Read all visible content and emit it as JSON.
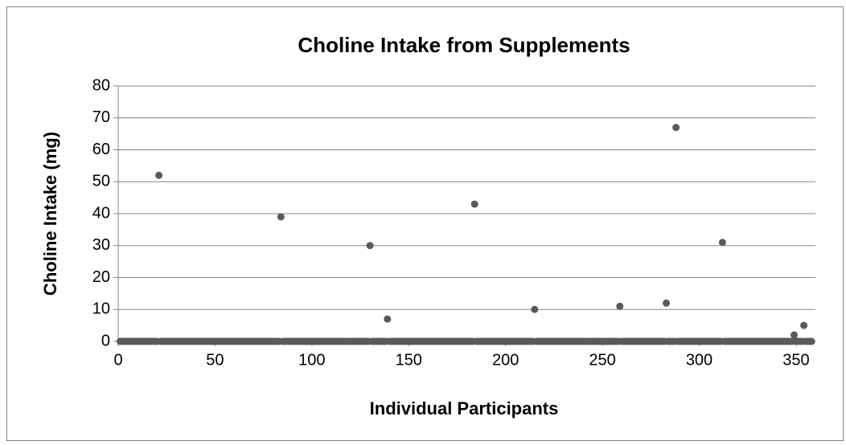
{
  "chart_data": {
    "type": "scatter",
    "title": "Choline Intake from Supplements",
    "x_label": "Individual Participants",
    "y_label": "Choline Intake (mg)",
    "xlim": [
      0,
      360
    ],
    "xticks": [
      0,
      50,
      100,
      150,
      200,
      250,
      300,
      350
    ],
    "ylim": [
      0,
      80
    ],
    "yticks": [
      0,
      10,
      20,
      30,
      40,
      50,
      60,
      70,
      80
    ],
    "grid": true,
    "series": [
      {
        "color": "#5a5a5a",
        "x": [
          1,
          2,
          3,
          4,
          5,
          6,
          7,
          8,
          9,
          10,
          11,
          12,
          13,
          14,
          15,
          16,
          17,
          18,
          19,
          20,
          21,
          22,
          23,
          24,
          25,
          26,
          27,
          28,
          29,
          30,
          31,
          32,
          33,
          34,
          35,
          36,
          37,
          38,
          39,
          40,
          41,
          42,
          43,
          44,
          45,
          46,
          47,
          48,
          49,
          50,
          51,
          52,
          53,
          54,
          55,
          56,
          57,
          58,
          59,
          60,
          61,
          62,
          63,
          64,
          65,
          66,
          67,
          68,
          69,
          70,
          71,
          72,
          73,
          74,
          75,
          76,
          77,
          78,
          79,
          80,
          81,
          82,
          83,
          84,
          85,
          86,
          87,
          88,
          89,
          90,
          91,
          92,
          93,
          94,
          95,
          96,
          97,
          98,
          99,
          100,
          101,
          102,
          103,
          104,
          105,
          106,
          107,
          108,
          109,
          110,
          111,
          112,
          113,
          114,
          115,
          116,
          117,
          118,
          119,
          120,
          121,
          122,
          123,
          124,
          125,
          126,
          127,
          128,
          129,
          130,
          131,
          132,
          133,
          134,
          135,
          136,
          137,
          138,
          139,
          140,
          141,
          142,
          143,
          144,
          145,
          146,
          147,
          148,
          149,
          150,
          151,
          152,
          153,
          154,
          155,
          156,
          157,
          158,
          159,
          160,
          161,
          162,
          163,
          164,
          165,
          166,
          167,
          168,
          169,
          170,
          171,
          172,
          173,
          174,
          175,
          176,
          177,
          178,
          179,
          180,
          181,
          182,
          183,
          184,
          185,
          186,
          187,
          188,
          189,
          190,
          191,
          192,
          193,
          194,
          195,
          196,
          197,
          198,
          199,
          200,
          201,
          202,
          203,
          204,
          205,
          206,
          207,
          208,
          209,
          210,
          211,
          212,
          213,
          214,
          215,
          216,
          217,
          218,
          219,
          220,
          221,
          222,
          223,
          224,
          225,
          226,
          227,
          228,
          229,
          230,
          231,
          232,
          233,
          234,
          235,
          236,
          237,
          238,
          239,
          240,
          241,
          242,
          243,
          244,
          245,
          246,
          247,
          248,
          249,
          250,
          251,
          252,
          253,
          254,
          255,
          256,
          257,
          258,
          259,
          260,
          261,
          262,
          263,
          264,
          265,
          266,
          267,
          268,
          269,
          270,
          271,
          272,
          273,
          274,
          275,
          276,
          277,
          278,
          279,
          280,
          281,
          282,
          283,
          284,
          285,
          286,
          287,
          288,
          289,
          290,
          291,
          292,
          293,
          294,
          295,
          296,
          297,
          298,
          299,
          300,
          301,
          302,
          303,
          304,
          305,
          306,
          307,
          308,
          309,
          310,
          311,
          312,
          313,
          314,
          315,
          316,
          317,
          318,
          319,
          320,
          321,
          322,
          323,
          324,
          325,
          326,
          327,
          328,
          329,
          330,
          331,
          332,
          333,
          334,
          335,
          336,
          337,
          338,
          339,
          340,
          341,
          342,
          343,
          344,
          345,
          346,
          347,
          348,
          349,
          350,
          351,
          352,
          353,
          354,
          355,
          356,
          357,
          358
        ],
        "values": [
          0,
          0,
          0,
          0,
          0,
          0,
          0,
          0,
          0,
          0,
          0,
          0,
          0,
          0,
          0,
          0,
          0,
          0,
          0,
          0,
          52,
          0,
          0,
          0,
          0,
          0,
          0,
          0,
          0,
          0,
          0,
          0,
          0,
          0,
          0,
          0,
          0,
          0,
          0,
          0,
          0,
          0,
          0,
          0,
          0,
          0,
          0,
          0,
          0,
          0,
          0,
          0,
          0,
          0,
          0,
          0,
          0,
          0,
          0,
          0,
          0,
          0,
          0,
          0,
          0,
          0,
          0,
          0,
          0,
          0,
          0,
          0,
          0,
          0,
          0,
          0,
          0,
          0,
          0,
          0,
          0,
          0,
          0,
          39,
          0,
          0,
          0,
          0,
          0,
          0,
          0,
          0,
          0,
          0,
          0,
          0,
          0,
          0,
          0,
          0,
          0,
          0,
          0,
          0,
          0,
          0,
          0,
          0,
          0,
          0,
          0,
          0,
          0,
          0,
          0,
          0,
          0,
          0,
          0,
          0,
          0,
          0,
          0,
          0,
          0,
          0,
          0,
          0,
          0,
          30,
          0,
          0,
          0,
          0,
          0,
          0,
          0,
          0,
          7,
          0,
          0,
          0,
          0,
          0,
          0,
          0,
          0,
          0,
          0,
          0,
          0,
          0,
          0,
          0,
          0,
          0,
          0,
          0,
          0,
          0,
          0,
          0,
          0,
          0,
          0,
          0,
          0,
          0,
          0,
          0,
          0,
          0,
          0,
          0,
          0,
          0,
          0,
          0,
          0,
          0,
          0,
          0,
          0,
          43,
          0,
          0,
          0,
          0,
          0,
          0,
          0,
          0,
          0,
          0,
          0,
          0,
          0,
          0,
          0,
          0,
          0,
          0,
          0,
          0,
          0,
          0,
          0,
          0,
          0,
          0,
          0,
          0,
          0,
          0,
          10,
          0,
          0,
          0,
          0,
          0,
          0,
          0,
          0,
          0,
          0,
          0,
          0,
          0,
          0,
          0,
          0,
          0,
          0,
          0,
          0,
          0,
          0,
          0,
          0,
          0,
          0,
          0,
          0,
          0,
          0,
          0,
          0,
          0,
          0,
          0,
          0,
          0,
          0,
          0,
          0,
          0,
          0,
          0,
          11,
          0,
          0,
          0,
          0,
          0,
          0,
          0,
          0,
          0,
          0,
          0,
          0,
          0,
          0,
          0,
          0,
          0,
          0,
          0,
          0,
          0,
          0,
          0,
          12,
          0,
          0,
          0,
          0,
          67,
          0,
          0,
          0,
          0,
          0,
          0,
          0,
          0,
          0,
          0,
          0,
          0,
          0,
          0,
          0,
          0,
          0,
          0,
          0,
          0,
          0,
          0,
          0,
          31,
          0,
          0,
          0,
          0,
          0,
          0,
          0,
          0,
          0,
          0,
          0,
          0,
          0,
          0,
          0,
          0,
          0,
          0,
          0,
          0,
          0,
          0,
          0,
          0,
          0,
          0,
          0,
          0,
          0,
          0,
          0,
          0,
          0,
          0,
          0,
          0,
          2,
          0,
          0,
          0,
          0,
          5,
          0,
          0,
          0,
          0
        ]
      }
    ]
  }
}
